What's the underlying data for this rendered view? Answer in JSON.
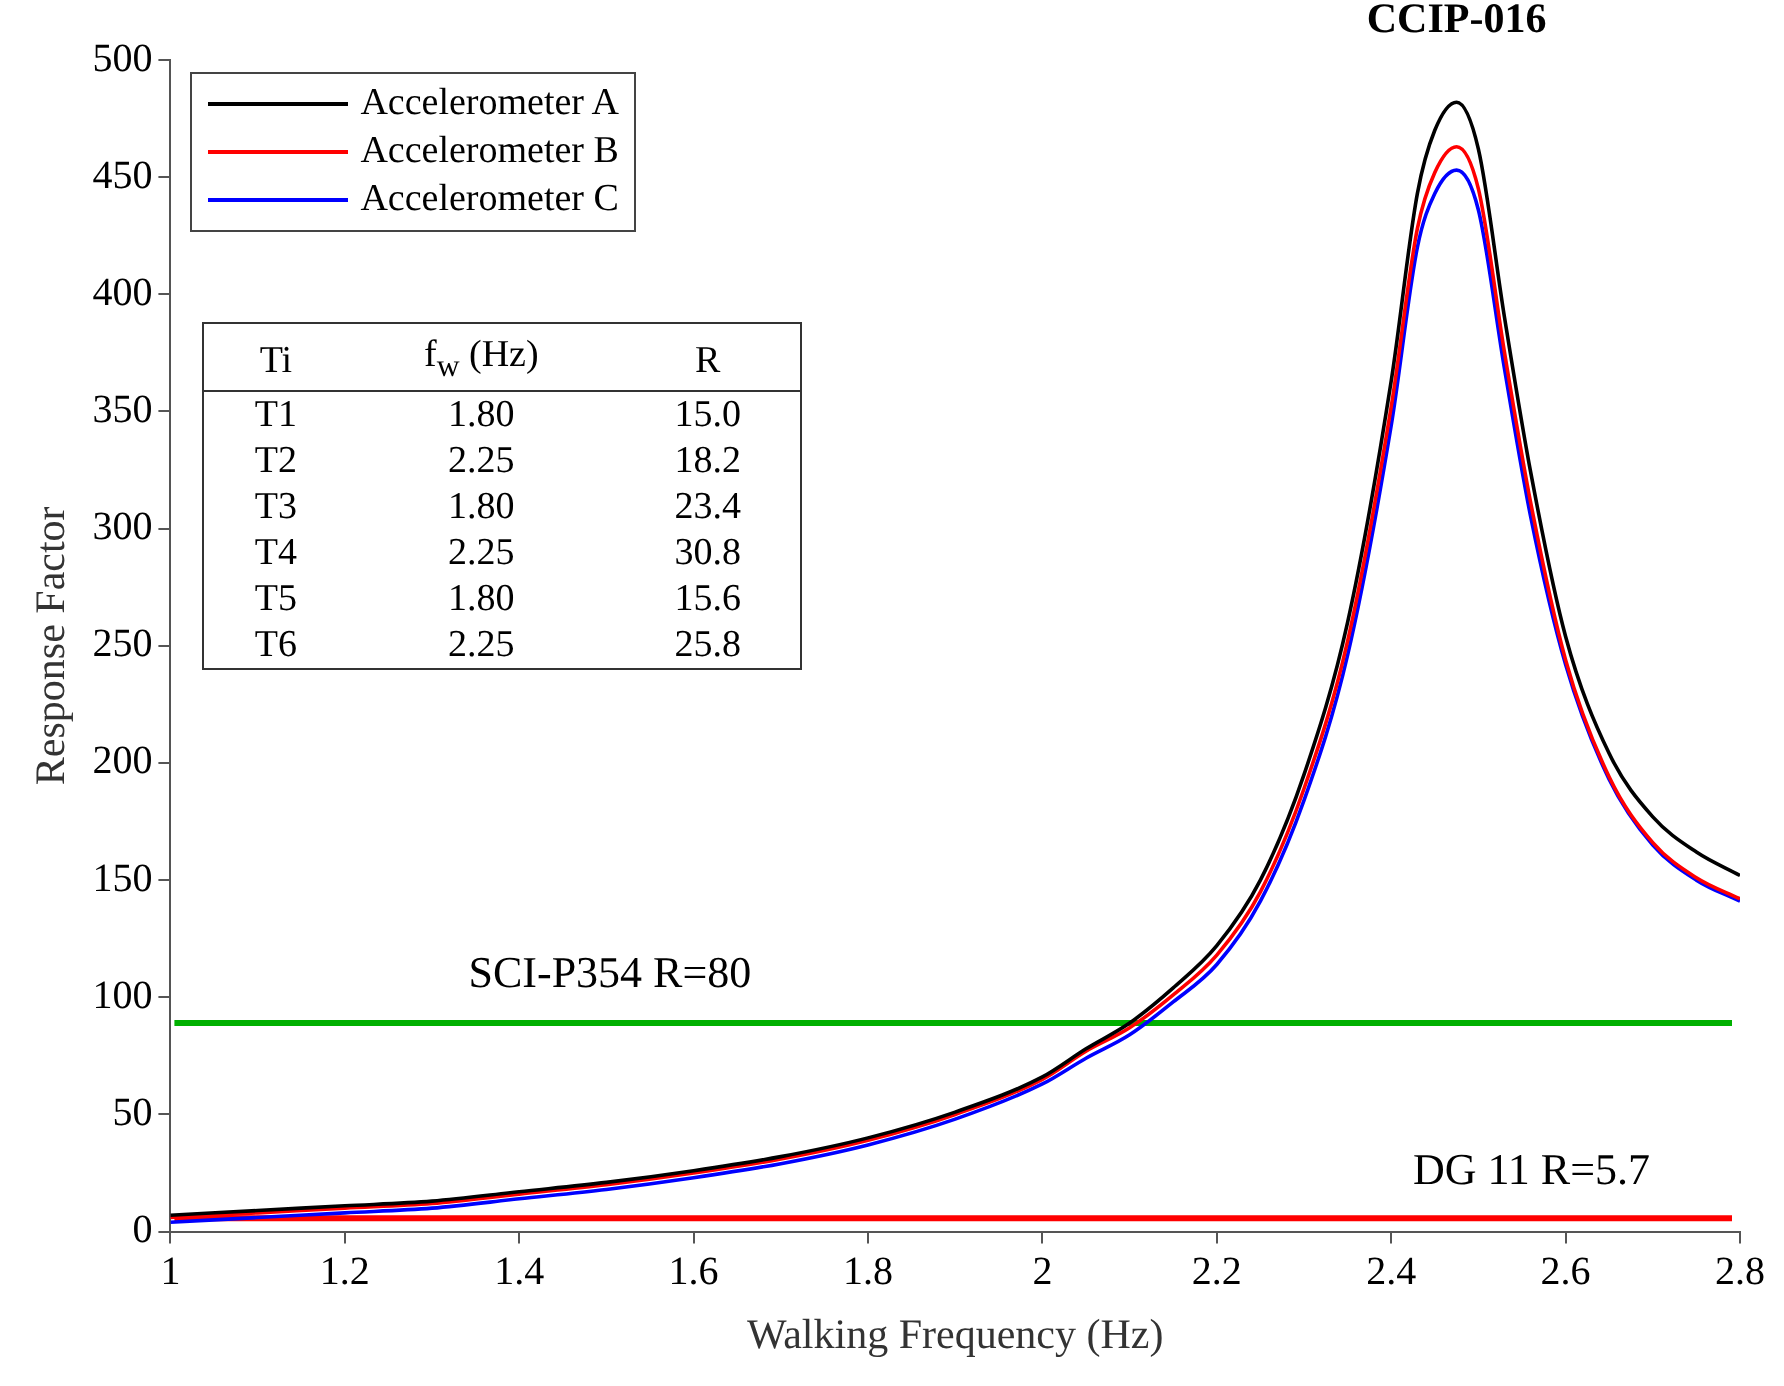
{
  "chart_data": {
    "type": "line",
    "xlabel": "Walking Frequency (Hz)",
    "ylabel": "Response Factor",
    "x": [
      1.0,
      1.1,
      1.2,
      1.3,
      1.4,
      1.5,
      1.6,
      1.7,
      1.8,
      1.9,
      2.0,
      2.05,
      2.1,
      2.15,
      2.2,
      2.25,
      2.3,
      2.35,
      2.4,
      2.43,
      2.45,
      2.475,
      2.5,
      2.53,
      2.56,
      2.6,
      2.65,
      2.7,
      2.75,
      2.8
    ],
    "series": [
      {
        "name": "Accelerometer A",
        "color": "#000000",
        "values": [
          7,
          9,
          11,
          13,
          17,
          21,
          26,
          32,
          40,
          51,
          66,
          78,
          89,
          104,
          122,
          150,
          195,
          260,
          363,
          443,
          470,
          482,
          462,
          390,
          324,
          254,
          204,
          177,
          162,
          152
        ]
      },
      {
        "name": "Accelerometer B",
        "color": "#ff0000",
        "values": [
          6,
          8,
          10,
          12,
          16,
          20,
          25,
          31,
          39,
          50,
          65,
          77,
          87,
          101,
          118,
          145,
          189,
          252,
          352,
          428,
          452,
          463,
          445,
          375,
          311,
          244,
          194,
          166,
          151,
          142
        ]
      },
      {
        "name": "Accelerometer C",
        "color": "#0000ff",
        "values": [
          4,
          6,
          8,
          10,
          14,
          18,
          23,
          29,
          37,
          48,
          63,
          74,
          84,
          98,
          114,
          141,
          184,
          246,
          344,
          420,
          443,
          453,
          436,
          368,
          305,
          242,
          193,
          165,
          150,
          141
        ]
      }
    ],
    "xlim": [
      1,
      2.8
    ],
    "xticks": [
      1,
      1.2,
      1.4,
      1.6,
      1.8,
      2,
      2.2,
      2.4,
      2.6,
      2.8
    ],
    "ylim": [
      0,
      500
    ],
    "yticks": [
      0,
      50,
      100,
      150,
      200,
      250,
      300,
      350,
      400,
      450,
      500
    ],
    "ref_lines": [
      {
        "axis": "y",
        "value": 89,
        "color": "#00b000"
      },
      {
        "axis": "y",
        "value": 5.7,
        "label": "DG 11 R=5.7",
        "color": "#ff0000"
      }
    ],
    "annotations": [
      {
        "text": "CCIP-016",
        "x": 2.475,
        "y": 482
      },
      "SCI-P354 R=80",
      "Ti",
      "f$_{w}$ (Hz)",
      "R",
      "T1",
      "1.80",
      "15.0",
      "T2",
      "2.25",
      "18.2",
      "T3",
      "1.80",
      "23.4",
      "T4",
      "2.25",
      "30.8",
      "T5",
      "1.80",
      "15.6",
      "T6",
      "2.25",
      "25.8"
    ],
    "grid": false,
    "legend": "top left",
    "marker": "none",
    "line_style": "solid"
  }
}
